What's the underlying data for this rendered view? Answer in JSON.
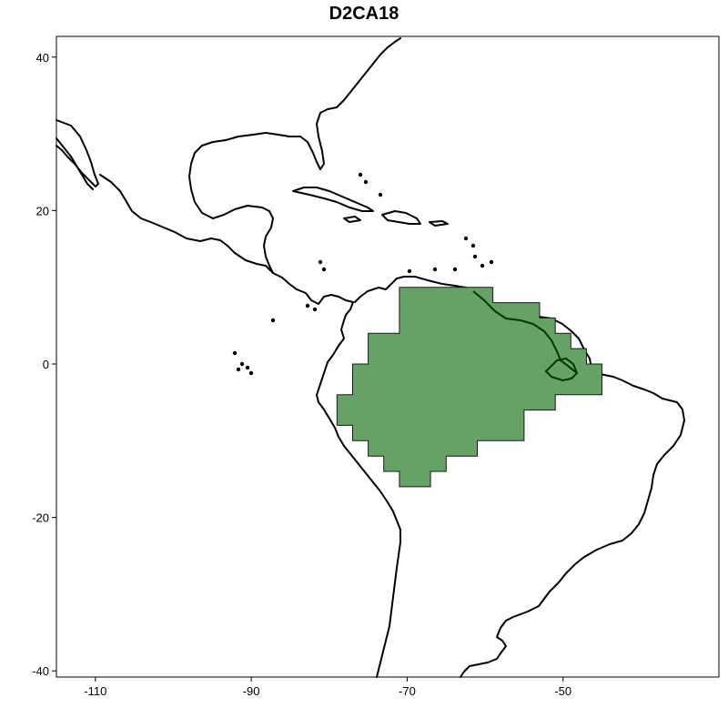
{
  "title": "D2CA18",
  "colors": {
    "region_fill": "#66a266",
    "region_stroke": "#1a1a1a",
    "coastline": "#000000",
    "river": "#003300"
  },
  "map": {
    "projection": "equirectangular",
    "lon_range": [
      -115,
      -30
    ],
    "lat_range": [
      -40.6,
      42.5
    ],
    "x_ticks": [
      {
        "value": -110,
        "label": "-110"
      },
      {
        "value": -90,
        "label": "-90"
      },
      {
        "value": -70,
        "label": "-70"
      },
      {
        "value": -50,
        "label": "-50"
      }
    ],
    "y_ticks": [
      {
        "value": 40,
        "label": "40"
      },
      {
        "value": 20,
        "label": "20"
      },
      {
        "value": 0,
        "label": "0"
      },
      {
        "value": -20,
        "label": "-20"
      },
      {
        "value": -40,
        "label": "-40"
      }
    ],
    "region": {
      "name": "D2CA18",
      "outline_lonlat": [
        [
          -71,
          10
        ],
        [
          -59,
          10
        ],
        [
          -59,
          8
        ],
        [
          -53,
          8
        ],
        [
          -53,
          6
        ],
        [
          -51,
          6
        ],
        [
          -51,
          4
        ],
        [
          -49,
          4
        ],
        [
          -49,
          2
        ],
        [
          -47,
          2
        ],
        [
          -47,
          0
        ],
        [
          -45,
          0
        ],
        [
          -45,
          -4
        ],
        [
          -51,
          -4
        ],
        [
          -51,
          -6
        ],
        [
          -55,
          -6
        ],
        [
          -55,
          -10
        ],
        [
          -61,
          -10
        ],
        [
          -61,
          -12
        ],
        [
          -65,
          -12
        ],
        [
          -65,
          -14
        ],
        [
          -67,
          -14
        ],
        [
          -67,
          -16
        ],
        [
          -71,
          -16
        ],
        [
          -71,
          -14
        ],
        [
          -73,
          -14
        ],
        [
          -73,
          -12
        ],
        [
          -75,
          -12
        ],
        [
          -75,
          -10
        ],
        [
          -77,
          -10
        ],
        [
          -77,
          -8
        ],
        [
          -79,
          -8
        ],
        [
          -79,
          -4
        ],
        [
          -77,
          -4
        ],
        [
          -77,
          0
        ],
        [
          -75,
          0
        ],
        [
          -75,
          4
        ],
        [
          -71,
          4
        ],
        [
          -71,
          10
        ]
      ]
    }
  }
}
